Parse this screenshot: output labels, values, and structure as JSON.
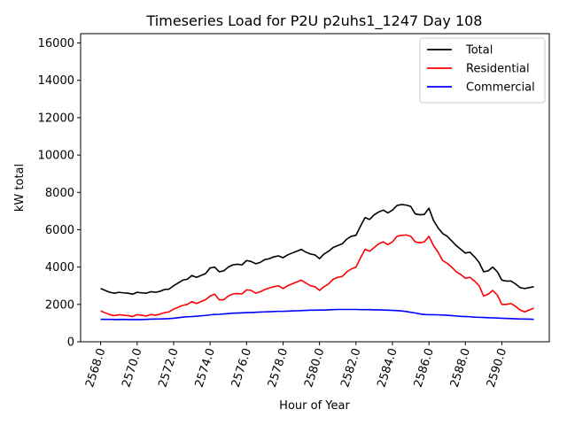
{
  "chart_data": {
    "type": "line",
    "title": "Timeseries Load for P2U p2uhs1_1247  Day 108",
    "xlabel": "Hour of Year",
    "ylabel": "kW total",
    "xlim": [
      2566.9,
      2592.6
    ],
    "ylim": [
      0,
      16500
    ],
    "x_ticks": [
      2568,
      2570,
      2572,
      2574,
      2576,
      2578,
      2580,
      2582,
      2584,
      2586,
      2588,
      2590
    ],
    "x_tick_labels": [
      "2568.0",
      "2570.0",
      "2572.0",
      "2574.0",
      "2576.0",
      "2578.0",
      "2580.0",
      "2582.0",
      "2584.0",
      "2586.0",
      "2588.0",
      "2590.0"
    ],
    "y_ticks": [
      0,
      2000,
      4000,
      6000,
      8000,
      10000,
      12000,
      14000,
      16000
    ],
    "y_tick_labels": [
      "0",
      "2000",
      "4000",
      "6000",
      "8000",
      "10000",
      "12000",
      "14000",
      "16000"
    ],
    "legend_position": "top-right",
    "x_start": 2568.0,
    "x_step": 0.25,
    "series": [
      {
        "name": "Total",
        "color": "#000000",
        "values": [
          2850,
          2750,
          2650,
          2600,
          2650,
          2620,
          2600,
          2550,
          2650,
          2620,
          2600,
          2680,
          2650,
          2700,
          2800,
          2820,
          3000,
          3150,
          3300,
          3350,
          3550,
          3450,
          3550,
          3650,
          3950,
          4000,
          3750,
          3800,
          4000,
          4120,
          4150,
          4120,
          4350,
          4300,
          4180,
          4250,
          4400,
          4450,
          4550,
          4600,
          4500,
          4650,
          4750,
          4850,
          4950,
          4800,
          4700,
          4650,
          4450,
          4700,
          4850,
          5050,
          5150,
          5250,
          5500,
          5650,
          5700,
          6200,
          6650,
          6550,
          6800,
          6950,
          7050,
          6900,
          7050,
          7300,
          7350,
          7320,
          7250,
          6850,
          6800,
          6820,
          7150,
          6500,
          6100,
          5800,
          5650,
          5400,
          5150,
          4950,
          4750,
          4800,
          4550,
          4250,
          3750,
          3800,
          4000,
          3750,
          3300,
          3250,
          3250,
          3100,
          2900,
          2850,
          2900,
          2950
        ]
      },
      {
        "name": "Residential",
        "color": "#ff0000",
        "values": [
          1650,
          1550,
          1450,
          1400,
          1450,
          1420,
          1400,
          1350,
          1450,
          1420,
          1380,
          1460,
          1420,
          1480,
          1560,
          1600,
          1750,
          1850,
          1950,
          2000,
          2150,
          2050,
          2150,
          2250,
          2450,
          2550,
          2250,
          2250,
          2450,
          2560,
          2580,
          2560,
          2780,
          2750,
          2600,
          2680,
          2800,
          2880,
          2950,
          3000,
          2850,
          3000,
          3100,
          3200,
          3300,
          3150,
          3000,
          2950,
          2750,
          2950,
          3100,
          3350,
          3450,
          3500,
          3750,
          3900,
          4000,
          4500,
          4950,
          4850,
          5050,
          5250,
          5350,
          5200,
          5350,
          5650,
          5700,
          5720,
          5650,
          5350,
          5300,
          5350,
          5650,
          5150,
          4800,
          4350,
          4200,
          4000,
          3750,
          3600,
          3400,
          3450,
          3250,
          3000,
          2450,
          2550,
          2750,
          2500,
          2000,
          2000,
          2050,
          1900,
          1700,
          1600,
          1700,
          1800
        ]
      },
      {
        "name": "Commercial",
        "color": "#0000ff",
        "values": [
          1200,
          1200,
          1200,
          1190,
          1190,
          1200,
          1190,
          1190,
          1190,
          1190,
          1200,
          1210,
          1220,
          1220,
          1230,
          1240,
          1260,
          1290,
          1320,
          1340,
          1350,
          1370,
          1390,
          1410,
          1440,
          1460,
          1470,
          1490,
          1510,
          1530,
          1540,
          1550,
          1560,
          1570,
          1580,
          1590,
          1600,
          1610,
          1620,
          1630,
          1630,
          1640,
          1650,
          1660,
          1670,
          1680,
          1690,
          1690,
          1700,
          1700,
          1710,
          1720,
          1730,
          1730,
          1730,
          1730,
          1730,
          1720,
          1720,
          1720,
          1710,
          1710,
          1700,
          1690,
          1680,
          1670,
          1650,
          1620,
          1580,
          1540,
          1490,
          1460,
          1450,
          1450,
          1440,
          1430,
          1420,
          1400,
          1380,
          1360,
          1350,
          1340,
          1320,
          1310,
          1300,
          1290,
          1280,
          1270,
          1260,
          1250,
          1240,
          1230,
          1220,
          1220,
          1210,
          1200
        ]
      }
    ]
  }
}
